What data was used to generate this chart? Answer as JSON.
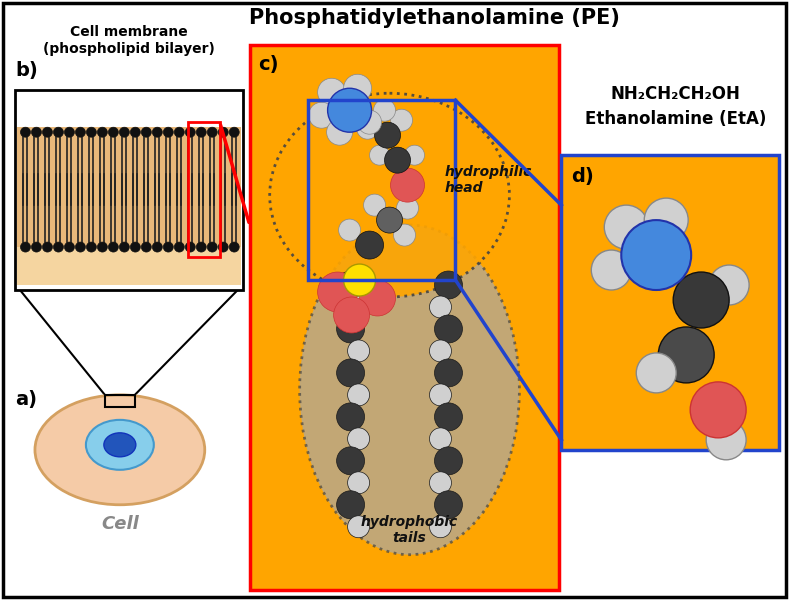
{
  "title": "Phosphatidylethanolamine (PE)",
  "title_fontsize": 16,
  "bg_color": "#ffffff",
  "orange_bg": "#FFA500",
  "panel_a_label": "a)",
  "panel_b_label": "b)",
  "panel_c_label": "c)",
  "panel_d_label": "d)",
  "cell_label": "Cell",
  "cell_membrane_label": "Cell membrane\n(phospholipid bilayer)",
  "hydrophilic_label": "hydrophilic\nhead",
  "hydrophobic_label": "hydrophobic\ntails",
  "formula_line1": "NH₂CH₂CH₂OH",
  "formula_line2": "Ethanolamine (EtA)",
  "lipid_bg": "#E8B87A",
  "lipid_bg_bottom": "#F5D5A0",
  "gray_oval": "#A8A8A8",
  "atom_blue": "#4488DD",
  "atom_red": "#E05555",
  "atom_white": "#D0D0D0",
  "atom_dark": "#383838",
  "atom_gray": "#606060",
  "atom_yellow": "#FFE000",
  "cell_body_color": "#F5CBA7",
  "cell_body_edge": "#D4A060",
  "nucleus_outer": "#87CEEB",
  "nucleus_inner": "#2255BB"
}
